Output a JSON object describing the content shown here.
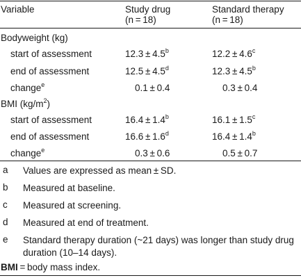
{
  "header": {
    "col1": "Variable",
    "col2_line1": "Study drug",
    "col2_line2": "(n = 18)",
    "col3_line1": "Standard therapy",
    "col3_line2": "(n = 18)"
  },
  "sections": [
    {
      "title": "Bodyweight (kg)",
      "rows": [
        {
          "label": "start of assessment",
          "label_sup": "",
          "v1": "12.3 ± 4.5",
          "v1_sup": "b",
          "v2": "12.2 ± 4.6",
          "v2_sup": "c"
        },
        {
          "label": "end of assessment",
          "label_sup": "",
          "v1": "12.5 ± 4.5",
          "v1_sup": "d",
          "v2": "12.3 ± 4.5",
          "v2_sup": "b"
        },
        {
          "label": "change",
          "label_sup": "e",
          "v1": "0.1 ± 0.4",
          "v1_sup": "",
          "v2": "0.3 ± 0.4",
          "v2_sup": ""
        }
      ]
    },
    {
      "title_main": "BMI (kg/m",
      "title_sup": "2",
      "title_end": ")",
      "rows": [
        {
          "label": "start of assessment",
          "label_sup": "",
          "v1": "16.4 ± 1.4",
          "v1_sup": "b",
          "v2": "16.1 ± 1.5",
          "v2_sup": "c"
        },
        {
          "label": "end of assessment",
          "label_sup": "",
          "v1": "16.6 ± 1.6",
          "v1_sup": "d",
          "v2": "16.4 ± 1.4",
          "v2_sup": "b"
        },
        {
          "label": "change",
          "label_sup": "e",
          "v1": "0.3 ± 0.6",
          "v1_sup": "",
          "v2": "0.5 ± 0.7",
          "v2_sup": ""
        }
      ]
    }
  ],
  "footnotes": [
    {
      "letter": "a",
      "text": "Values are expressed as mean ± SD."
    },
    {
      "letter": "b",
      "text": "Measured at baseline."
    },
    {
      "letter": "c",
      "text": "Measured at screening."
    },
    {
      "letter": "d",
      "text": "Measured at end of treatment."
    },
    {
      "letter": "e",
      "text": "Standard therapy duration (~21 days) was longer than study drug duration (10–14 days)."
    }
  ],
  "abbreviation": {
    "term": "BMI",
    "definition": " = body mass index."
  }
}
